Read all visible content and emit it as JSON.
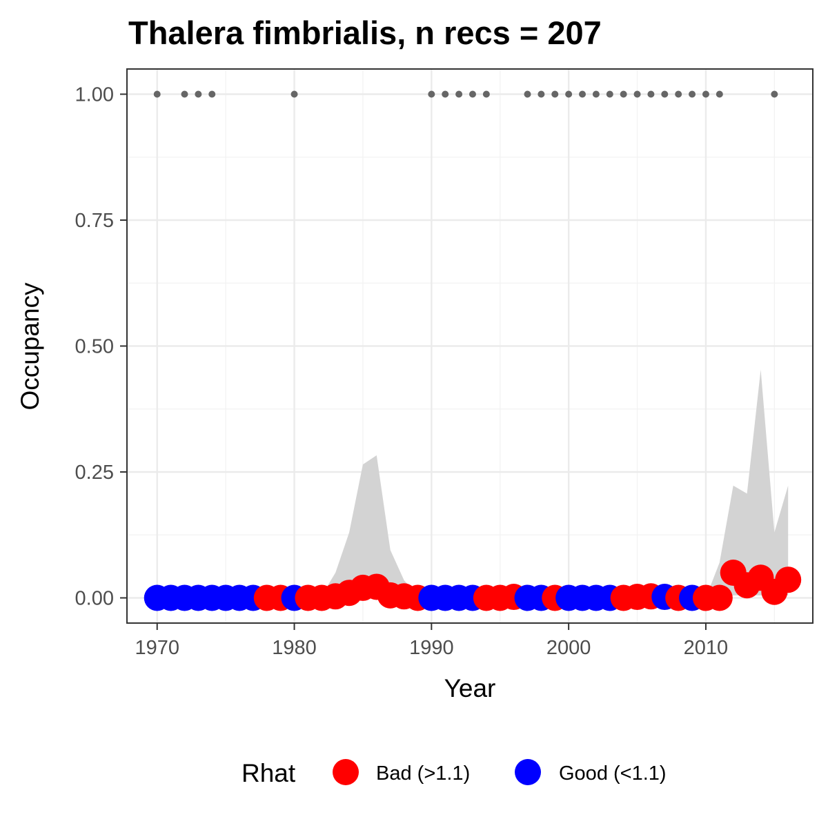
{
  "chart_data": {
    "type": "scatter",
    "title": "Thalera fimbrialis, n recs = 207",
    "xlabel": "Year",
    "ylabel": "Occupancy",
    "xlim": [
      1967.8,
      2017.8
    ],
    "ylim": [
      -0.05,
      1.05
    ],
    "x_ticks": [
      1970,
      1980,
      1990,
      2000,
      2010
    ],
    "x_tick_labels": [
      "1970",
      "1980",
      "1990",
      "2000",
      "2010"
    ],
    "y_ticks": [
      0,
      0.25,
      0.5,
      0.75,
      1.0
    ],
    "y_tick_labels": [
      "0.00",
      "0.25",
      "0.50",
      "0.75",
      "1.00"
    ],
    "grid": true,
    "legend": {
      "title": "Rhat",
      "position": "bottom",
      "entries": [
        {
          "label": "Bad (>1.1)",
          "color": "#ff0000"
        },
        {
          "label": "Good (<1.1)",
          "color": "#0000ff"
        }
      ]
    },
    "colors": {
      "bad": "#ff0000",
      "good": "#0000ff",
      "ribbon": "#d3d3d3",
      "record": "#666666"
    },
    "credible_interval": {
      "x": [
        1970,
        1971,
        1972,
        1973,
        1974,
        1975,
        1976,
        1977,
        1978,
        1979,
        1980,
        1981,
        1982,
        1983,
        1984,
        1985,
        1986,
        1987,
        1988,
        1989,
        1990,
        1991,
        1992,
        1993,
        1994,
        1995,
        1996,
        1997,
        1998,
        1999,
        2000,
        2001,
        2002,
        2003,
        2004,
        2005,
        2006,
        2007,
        2008,
        2009,
        2010,
        2011,
        2012,
        2013,
        2014,
        2015,
        2016
      ],
      "lower": [
        0,
        0,
        0,
        0,
        0,
        0,
        0,
        0,
        0,
        0,
        0,
        0,
        0,
        0,
        0,
        0,
        0,
        0,
        0,
        0,
        0,
        0,
        0,
        0,
        0,
        0,
        0,
        0,
        0,
        0,
        0,
        0,
        0,
        0,
        0,
        0,
        0,
        0,
        0,
        0,
        0,
        0,
        0.005,
        0.005,
        0.005,
        0.005,
        0.005
      ],
      "upper": [
        0,
        0,
        0,
        0,
        0,
        0,
        0,
        0,
        0,
        0,
        0,
        0,
        0.005,
        0.05,
        0.13,
        0.265,
        0.283,
        0.095,
        0.035,
        0.005,
        0,
        0,
        0,
        0,
        0,
        0,
        0,
        0,
        0,
        0,
        0,
        0,
        0,
        0,
        0,
        0,
        0,
        0,
        0,
        0,
        0,
        0.07,
        0.223,
        0.207,
        0.453,
        0.13,
        0.223
      ]
    },
    "series": [
      {
        "name": "Bad (>1.1)",
        "color": "#ff0000",
        "x": [
          1978,
          1979,
          1981,
          1982,
          1983,
          1984,
          1985,
          1986,
          1987,
          1988,
          1989,
          1994,
          1995,
          1996,
          1999,
          2004,
          2005,
          2006,
          2008,
          2010,
          2011,
          2012,
          2013,
          2014,
          2015,
          2016
        ],
        "y": [
          0,
          0,
          0,
          0,
          0.003,
          0.01,
          0.02,
          0.022,
          0.005,
          0.003,
          0,
          0,
          0,
          0.002,
          0,
          0,
          0.002,
          0.003,
          0,
          0,
          0,
          0.05,
          0.025,
          0.04,
          0.012,
          0.036
        ]
      },
      {
        "name": "Good (<1.1)",
        "color": "#0000ff",
        "x": [
          1970,
          1971,
          1972,
          1973,
          1974,
          1975,
          1976,
          1977,
          1980,
          1990,
          1991,
          1992,
          1993,
          1997,
          1998,
          2000,
          2001,
          2002,
          2003,
          2007,
          2009
        ],
        "y": [
          0,
          0,
          0,
          0,
          0,
          0,
          0,
          0,
          0,
          0,
          0,
          0,
          0,
          0,
          0,
          0,
          0,
          0,
          0,
          0.002,
          0
        ]
      }
    ],
    "records": {
      "x": [
        1970,
        1972,
        1973,
        1974,
        1980,
        1990,
        1991,
        1992,
        1993,
        1994,
        1997,
        1998,
        1999,
        2000,
        2001,
        2002,
        2003,
        2004,
        2005,
        2006,
        2007,
        2008,
        2009,
        2010,
        2011,
        2015
      ],
      "y": [
        1,
        1,
        1,
        1,
        1,
        1,
        1,
        1,
        1,
        1,
        1,
        1,
        1,
        1,
        1,
        1,
        1,
        1,
        1,
        1,
        1,
        1,
        1,
        1,
        1,
        1
      ]
    }
  }
}
